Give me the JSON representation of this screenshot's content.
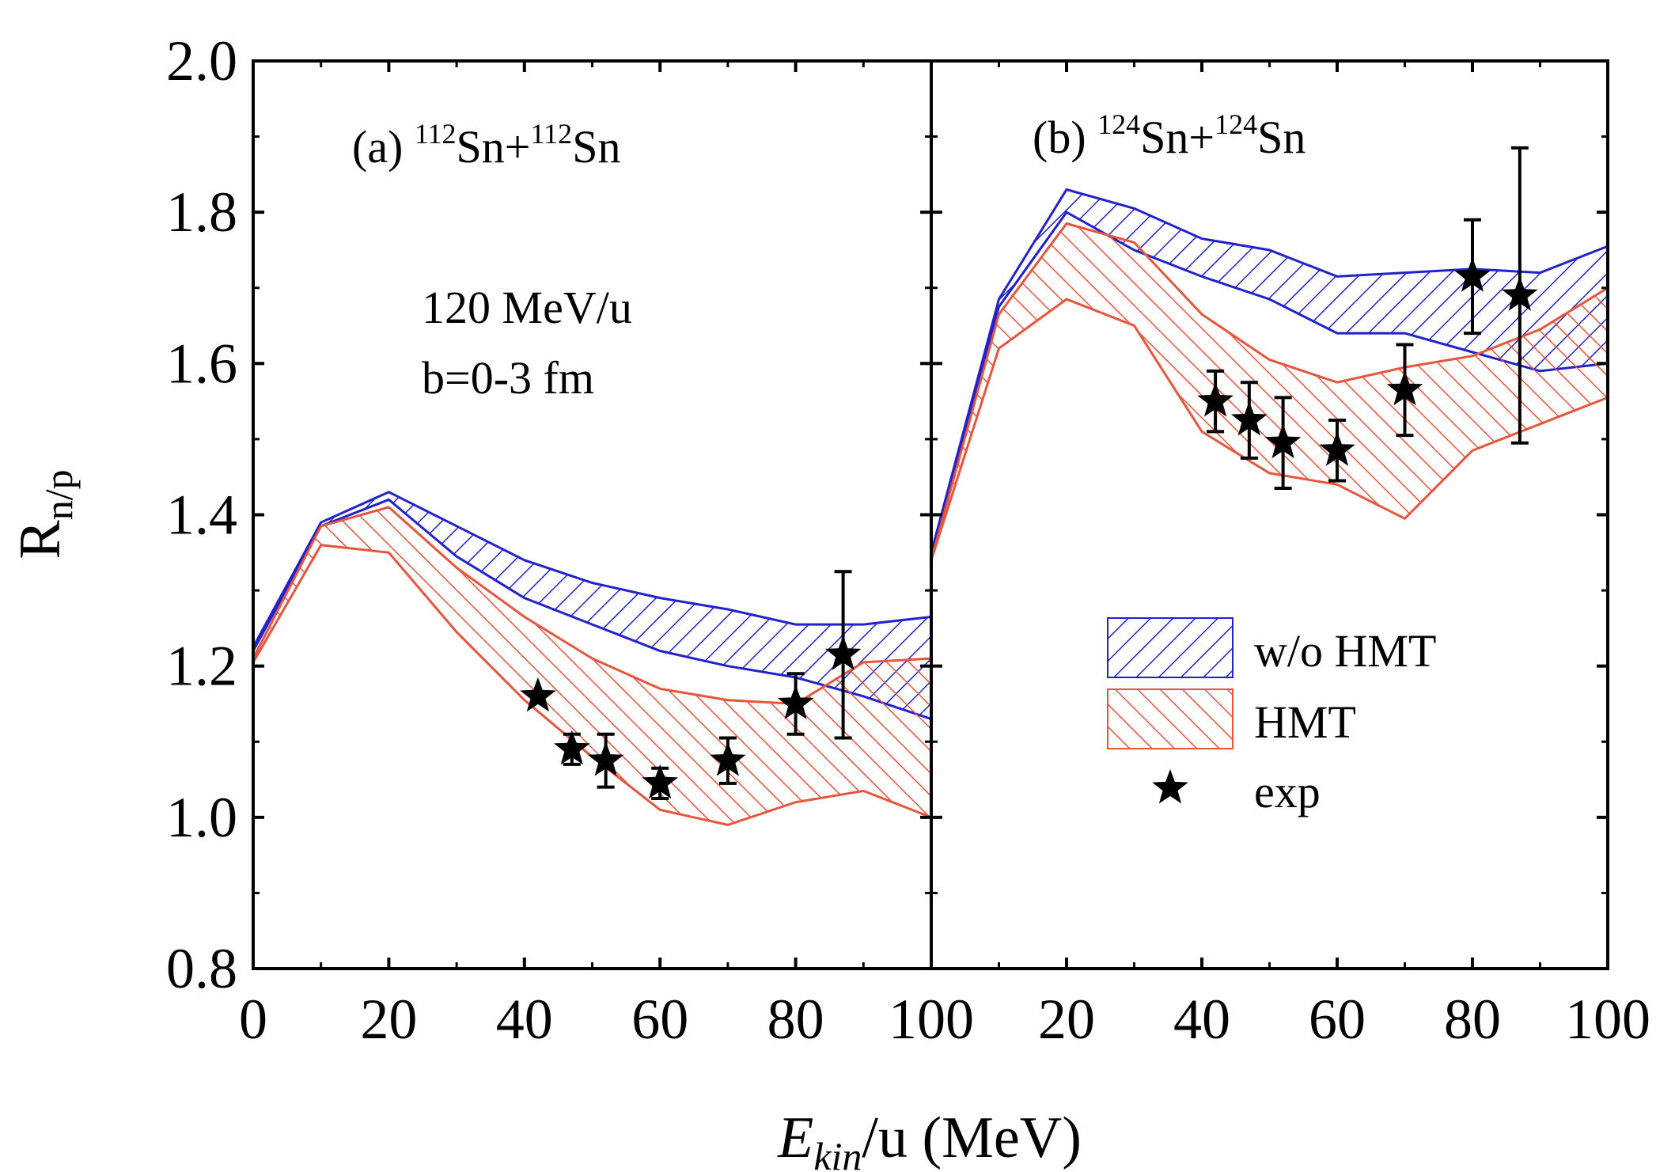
{
  "chart_data": {
    "type": "area",
    "xlabel_main": "E",
    "xlabel_sub": "kin",
    "xlabel_rest": "/u (MeV)",
    "ylabel_main": "R",
    "ylabel_sub": "n/p",
    "ylim": [
      0.8,
      2.0
    ],
    "xlim": [
      0,
      100
    ],
    "yticks": [
      "0.8",
      "1.0",
      "1.2",
      "1.4",
      "1.6",
      "1.8",
      "2.0"
    ],
    "yticks_values": [
      0.8,
      1.0,
      1.2,
      1.4,
      1.6,
      1.8,
      2.0
    ],
    "xticks_a": [
      "0",
      "20",
      "40",
      "60",
      "80"
    ],
    "xticks_a_values": [
      0,
      20,
      40,
      60,
      80
    ],
    "xtick_shared": "100",
    "xticks_b": [
      "20",
      "40",
      "60",
      "80",
      "100"
    ],
    "xticks_b_values": [
      20,
      40,
      60,
      80,
      100
    ],
    "condition_line1": "120 MeV/u",
    "condition_line2": "b=0-3 fm",
    "legend": {
      "wo_hmt": "w/o HMT",
      "hmt": "HMT",
      "exp": "exp",
      "position": "lower-right of panel b"
    },
    "colors": {
      "wo_hmt": "#2222cc",
      "hmt": "#e8553d",
      "exp": "#000000"
    },
    "panels": [
      {
        "label_prefix": "(a) ",
        "mass1": "112",
        "elem1": "Sn+",
        "mass2": "112",
        "elem2": "Sn",
        "wo_hmt": {
          "x": [
            0,
            10,
            20,
            30,
            40,
            50,
            60,
            70,
            80,
            90,
            100
          ],
          "upper": [
            1.225,
            1.39,
            1.43,
            1.385,
            1.34,
            1.31,
            1.29,
            1.275,
            1.255,
            1.255,
            1.265
          ],
          "lower": [
            1.22,
            1.385,
            1.42,
            1.345,
            1.29,
            1.255,
            1.22,
            1.2,
            1.185,
            1.16,
            1.13
          ]
        },
        "hmt": {
          "x": [
            0,
            10,
            20,
            30,
            40,
            50,
            60,
            70,
            80,
            90,
            100
          ],
          "upper": [
            1.21,
            1.385,
            1.41,
            1.33,
            1.265,
            1.21,
            1.17,
            1.155,
            1.15,
            1.205,
            1.21
          ],
          "lower": [
            1.205,
            1.36,
            1.35,
            1.245,
            1.155,
            1.08,
            1.01,
            0.99,
            1.02,
            1.035,
            1.0
          ]
        },
        "exp": [
          {
            "x": 42,
            "y": 1.16,
            "err": 0.0
          },
          {
            "x": 47,
            "y": 1.09,
            "err": 0.02
          },
          {
            "x": 52,
            "y": 1.075,
            "err": 0.035
          },
          {
            "x": 60,
            "y": 1.045,
            "err": 0.02
          },
          {
            "x": 70,
            "y": 1.075,
            "err": 0.03
          },
          {
            "x": 80,
            "y": 1.15,
            "err": 0.04
          },
          {
            "x": 87,
            "y": 1.215,
            "err": 0.11
          }
        ]
      },
      {
        "label_prefix": "(b) ",
        "mass1": "124",
        "elem1": "Sn+",
        "mass2": "124",
        "elem2": "Sn",
        "wo_hmt": {
          "x": [
            0,
            10,
            20,
            30,
            40,
            50,
            60,
            70,
            80,
            90,
            100
          ],
          "upper": [
            1.35,
            1.685,
            1.83,
            1.805,
            1.765,
            1.75,
            1.715,
            1.72,
            1.725,
            1.72,
            1.755
          ],
          "lower": [
            1.345,
            1.675,
            1.8,
            1.75,
            1.715,
            1.685,
            1.64,
            1.64,
            1.615,
            1.59,
            1.6
          ]
        },
        "hmt": {
          "x": [
            0,
            10,
            20,
            30,
            40,
            50,
            60,
            70,
            80,
            90,
            100
          ],
          "upper": [
            1.34,
            1.665,
            1.785,
            1.76,
            1.665,
            1.605,
            1.575,
            1.595,
            1.61,
            1.645,
            1.7
          ],
          "lower": [
            1.34,
            1.62,
            1.685,
            1.65,
            1.51,
            1.455,
            1.44,
            1.395,
            1.485,
            1.52,
            1.555
          ]
        },
        "exp": [
          {
            "x": 42,
            "y": 1.55,
            "err": 0.04
          },
          {
            "x": 47,
            "y": 1.525,
            "err": 0.05
          },
          {
            "x": 52,
            "y": 1.495,
            "err": 0.06
          },
          {
            "x": 60,
            "y": 1.485,
            "err": 0.04
          },
          {
            "x": 70,
            "y": 1.565,
            "err": 0.06
          },
          {
            "x": 80,
            "y": 1.715,
            "err": 0.075
          },
          {
            "x": 87,
            "y": 1.69,
            "err": 0.195
          }
        ]
      }
    ]
  }
}
